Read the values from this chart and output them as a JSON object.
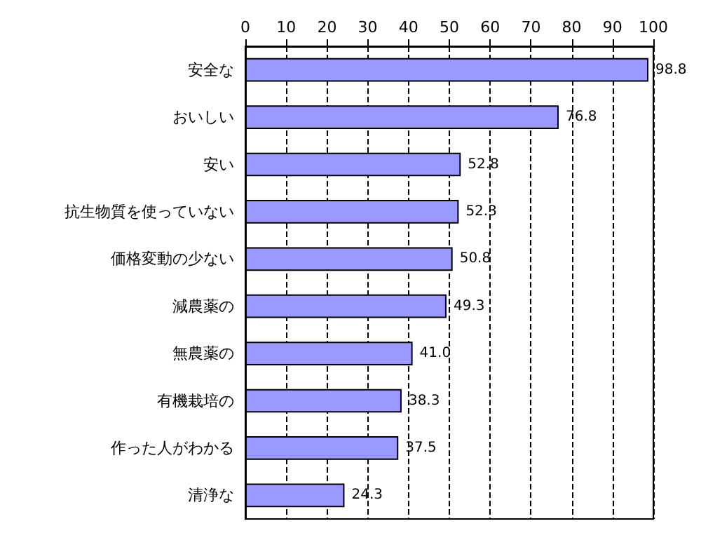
{
  "chart_data": {
    "type": "bar",
    "orientation": "horizontal",
    "categories": [
      "安全な",
      "おいしい",
      "安い",
      "抗生物質を使っていない",
      "価格変動の少ない",
      "減農薬の",
      "無農薬の",
      "有機栽培の",
      "作った人がわかる",
      "清浄な"
    ],
    "values": [
      98.8,
      76.8,
      52.8,
      52.3,
      50.8,
      49.3,
      41.0,
      38.3,
      37.5,
      24.3
    ],
    "value_labels": [
      "98.8",
      "76.8",
      "52.8",
      "52.3",
      "50.8",
      "49.3",
      "41.0",
      "38.3",
      "37.5",
      "24.3"
    ],
    "color": "#9999ff",
    "xlim": [
      0,
      100
    ],
    "xticks": [
      0,
      10,
      20,
      30,
      40,
      50,
      60,
      70,
      80,
      90,
      100
    ],
    "grid": "x"
  }
}
